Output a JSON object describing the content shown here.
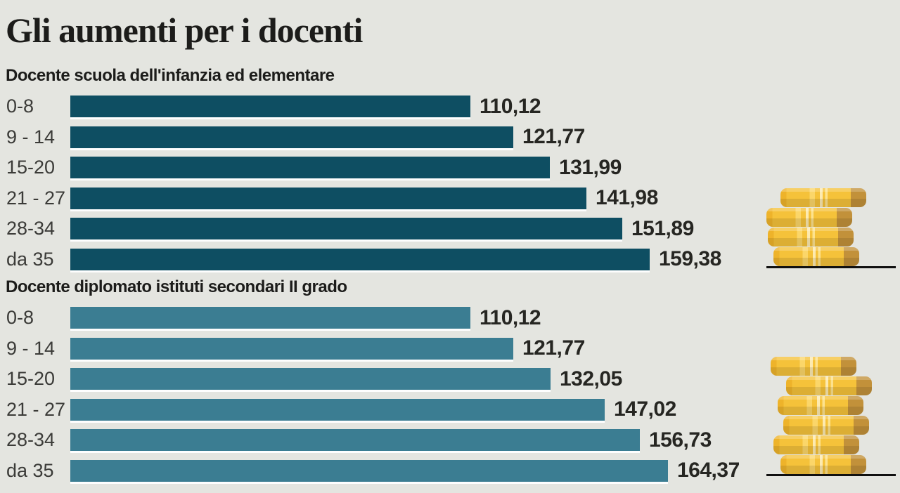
{
  "title": "Gli aumenti per i docenti",
  "colors": {
    "background": "#e4e5e0",
    "text_dark": "#1c1c1a",
    "category_label": "#3b3b38",
    "value_label": "#262622",
    "bar_section1": "#0e4e62",
    "bar_section2": "#3b7d92",
    "coin_gold": "#f5c23a",
    "coin_highlight": "#fde28d",
    "coin_edge": "#c2913a",
    "baseline": "#101010"
  },
  "chart_data": [
    {
      "type": "bar",
      "orientation": "horizontal",
      "title": "Docente scuola dell'infanzia ed elementare",
      "categories": [
        "0-8",
        "9 - 14",
        "15-20",
        "21 - 27",
        "28-34",
        "da 35"
      ],
      "values": [
        110.12,
        121.77,
        131.99,
        141.98,
        151.89,
        159.38
      ],
      "value_labels": [
        "110,12",
        "121,77",
        "131,99",
        "141,98",
        "151,89",
        "159,38"
      ],
      "bar_color": "#0e4e62",
      "xlim": [
        0,
        170
      ],
      "grid": false,
      "legend": "none"
    },
    {
      "type": "bar",
      "orientation": "horizontal",
      "title": "Docente diplomato istituti secondari II grado",
      "categories": [
        "0-8",
        "9 - 14",
        "15-20",
        "21 - 27",
        "28-34",
        "da 35"
      ],
      "values": [
        110.12,
        121.77,
        132.05,
        147.02,
        156.73,
        164.37
      ],
      "value_labels": [
        "110,12",
        "121,77",
        "132,05",
        "147,02",
        "156,73",
        "164,37"
      ],
      "bar_color": "#3b7d92",
      "xlim": [
        0,
        170
      ],
      "grid": false,
      "legend": "none"
    }
  ],
  "decorations": {
    "coin_stacks": [
      {
        "coins": 4,
        "section": 0
      },
      {
        "coins": 6,
        "section": 1
      }
    ]
  }
}
